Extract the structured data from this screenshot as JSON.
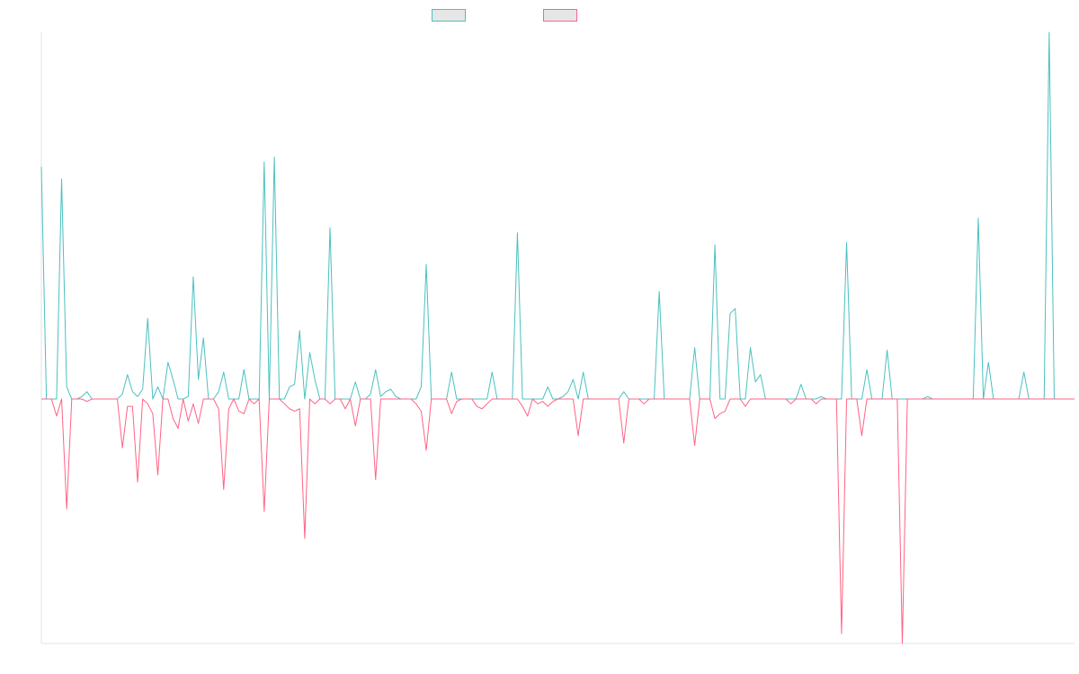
{
  "chart_data": {
    "type": "line",
    "title": "",
    "xlabel": "",
    "ylabel": "",
    "ylim": [
      -100,
      150
    ],
    "grid": false,
    "legend_position": "top-center",
    "series": [
      {
        "label": "",
        "color": "#4bc0c0",
        "fill": "#e6e6e6",
        "values": [
          95,
          0,
          0,
          0,
          90,
          5,
          0,
          0,
          1,
          3,
          0,
          0,
          0,
          0,
          0,
          0,
          2,
          10,
          3,
          1,
          4,
          33,
          0,
          5,
          0,
          15,
          8,
          0,
          0,
          1,
          50,
          8,
          25,
          0,
          0,
          3,
          11,
          0,
          0,
          0,
          12,
          0,
          0,
          0,
          97,
          0,
          99,
          0,
          0,
          5,
          6,
          28,
          0,
          19,
          8,
          0,
          0,
          70,
          0,
          0,
          0,
          0,
          7,
          0,
          0,
          2,
          12,
          1,
          3,
          4,
          1,
          0,
          0,
          0,
          0,
          5,
          55,
          0,
          0,
          0,
          0,
          11,
          0,
          0,
          0,
          0,
          0,
          0,
          0,
          11,
          0,
          0,
          0,
          0,
          68,
          0,
          0,
          0,
          0,
          0,
          5,
          0,
          0,
          1,
          3,
          8,
          0,
          11,
          0,
          0,
          0,
          0,
          0,
          0,
          0,
          3,
          0,
          0,
          0,
          0,
          0,
          0,
          44,
          0,
          0,
          0,
          0,
          0,
          0,
          21,
          0,
          0,
          0,
          63,
          0,
          0,
          35,
          37,
          0,
          0,
          21,
          7,
          10,
          0,
          0,
          0,
          0,
          0,
          0,
          0,
          6,
          0,
          0,
          0,
          1,
          0,
          0,
          0,
          0,
          64,
          0,
          0,
          0,
          12,
          0,
          0,
          0,
          20,
          0,
          0,
          0,
          0,
          0,
          0,
          0,
          1,
          0,
          0,
          0,
          0,
          0,
          0,
          0,
          0,
          0,
          74,
          0,
          15,
          0,
          0,
          0,
          0,
          0,
          0,
          11,
          0,
          0,
          0,
          0,
          150,
          0,
          0,
          0
        ]
      },
      {
        "label": "",
        "color": "#ff6384",
        "fill": "#e6e6e6",
        "values": [
          0,
          0,
          0,
          -7,
          0,
          -45,
          0,
          0,
          0,
          -1,
          0,
          0,
          0,
          0,
          0,
          0,
          -20,
          -3,
          -3,
          -34,
          0,
          -2,
          -6,
          -31,
          0,
          0,
          -8,
          -12,
          0,
          -9,
          -2,
          -10,
          0,
          0,
          0,
          -4,
          -37,
          -4,
          0,
          -5,
          -6,
          0,
          -2,
          0,
          -46,
          0,
          0,
          0,
          -2,
          -4,
          -5,
          -4,
          -57,
          0,
          -2,
          0,
          0,
          -2,
          0,
          0,
          -4,
          0,
          -11,
          0,
          0,
          0,
          -33,
          0,
          0,
          0,
          0,
          0,
          0,
          0,
          -2,
          -5,
          -21,
          0,
          0,
          0,
          0,
          -6,
          -1,
          0,
          0,
          0,
          -3,
          -4,
          -2,
          0,
          0,
          0,
          0,
          0,
          0,
          -3,
          -7,
          0,
          -2,
          -1,
          -3,
          -1,
          0,
          0,
          0,
          0,
          -15,
          0,
          0,
          0,
          0,
          0,
          0,
          0,
          0,
          -18,
          0,
          0,
          0,
          -2,
          0,
          0,
          0,
          0,
          0,
          0,
          0,
          0,
          0,
          -19,
          0,
          0,
          0,
          -8,
          -6,
          -5,
          0,
          0,
          0,
          -3,
          0,
          0,
          0,
          0,
          0,
          0,
          0,
          0,
          -2,
          0,
          0,
          0,
          0,
          -2,
          0,
          0,
          0,
          0,
          -96,
          0,
          0,
          0,
          -15,
          0,
          0,
          0,
          0,
          0,
          0,
          0,
          -100,
          0,
          0,
          0,
          0,
          0,
          0,
          0,
          0,
          0,
          0,
          0,
          0,
          0,
          0,
          0,
          0,
          0,
          0,
          0,
          0,
          0,
          0,
          0,
          0,
          0,
          0,
          0,
          0,
          0,
          0,
          0,
          0,
          0,
          0
        ]
      }
    ]
  }
}
